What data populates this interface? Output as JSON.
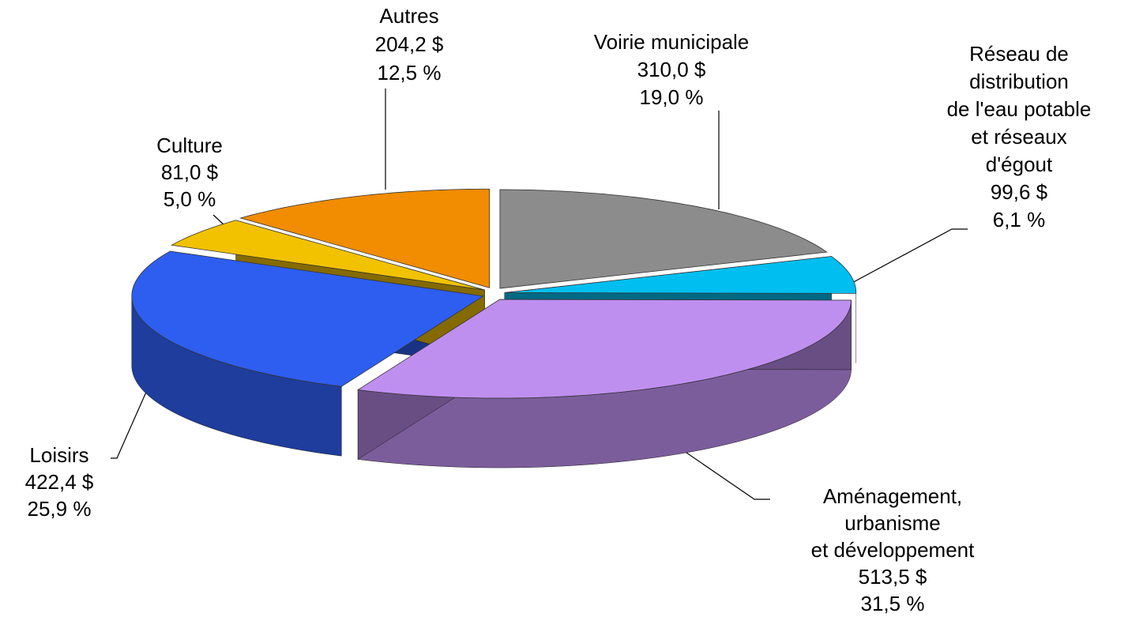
{
  "chart_data": {
    "type": "pie3d",
    "categories": [
      [
        "Voirie municipale"
      ],
      [
        "Réseau de",
        "distribution",
        "de l'eau potable",
        "et réseaux",
        "d'égout"
      ],
      [
        "Aménagement,",
        "urbanisme",
        "et développement"
      ],
      [
        "Loisirs"
      ],
      [
        "Culture"
      ],
      [
        "Autres"
      ]
    ],
    "values": [
      310.0,
      99.6,
      513.5,
      422.4,
      81.0,
      204.2
    ],
    "value_labels": [
      "310,0 $",
      "99,6 $",
      "513,5 $",
      "422,4 $",
      "81,0 $",
      "204,2 $"
    ],
    "percentages": [
      19.0,
      6.1,
      31.5,
      25.9,
      5.0,
      12.5
    ],
    "percentage_labels": [
      "19,0 %",
      "6,1 %",
      "31,5 %",
      "25,9 %",
      "5,0 %",
      "12,5 %"
    ],
    "colors": [
      "#8c8c8c",
      "#00bff0",
      "#bf8ff0",
      "#2e5ef0",
      "#f2c200",
      "#f28c00"
    ]
  }
}
